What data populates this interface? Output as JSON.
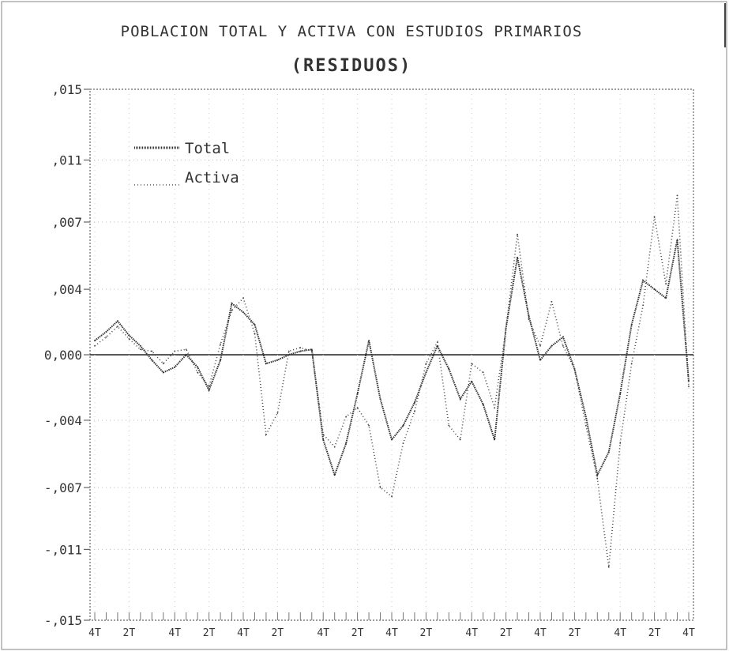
{
  "chart_data": {
    "type": "line",
    "title": "POBLACION TOTAL Y ACTIVA CON ESTUDIOS PRIMARIOS",
    "subtitle": "(RESIDUOS)",
    "xlabel": "",
    "ylabel": "",
    "ylim": [
      -0.015,
      0.015
    ],
    "y_ticks": [
      ",015",
      ",011",
      ",007",
      ",004",
      "0,000",
      "-,004",
      "-,007",
      "-,011",
      "-,015"
    ],
    "y_tick_values": [
      0.015,
      0.011,
      0.0075,
      0.0037,
      0.0,
      -0.0037,
      -0.0075,
      -0.011,
      -0.015
    ],
    "x_ticks": [
      "4T",
      "2T",
      "4T",
      "2T",
      "4T",
      "2T",
      "4T",
      "2T",
      "4T",
      "2T",
      "4T",
      "2T",
      "4T",
      "2T",
      "4T",
      "2T",
      "4T"
    ],
    "x_count": 53,
    "legend_position": "top-left",
    "series": [
      {
        "name": "Total",
        "style": "solid",
        "color": "#333333",
        "values": [
          0.0008,
          0.0013,
          0.0019,
          0.0011,
          0.0005,
          -0.0003,
          -0.001,
          -0.0007,
          0.0,
          -0.0007,
          -0.002,
          -0.0003,
          0.0029,
          0.0024,
          0.0017,
          -0.0005,
          -0.0003,
          0.0,
          0.0002,
          0.0003,
          -0.0048,
          -0.0068,
          -0.005,
          -0.0022,
          0.0008,
          -0.0025,
          -0.0048,
          -0.004,
          -0.0027,
          -0.001,
          0.0005,
          -0.0008,
          -0.0025,
          -0.0015,
          -0.0028,
          -0.0048,
          0.0015,
          0.0055,
          0.0022,
          -0.0003,
          0.0005,
          0.001,
          -0.0008,
          -0.0035,
          -0.0068,
          -0.0055,
          -0.0022,
          0.0017,
          0.0042,
          0.0037,
          0.0032,
          0.0065,
          -0.0015
        ]
      },
      {
        "name": "Activa",
        "style": "dotted",
        "color": "#444444",
        "values": [
          0.0005,
          0.001,
          0.0016,
          0.0009,
          0.0003,
          0.0002,
          -0.0005,
          0.0002,
          0.0003,
          -0.001,
          -0.0018,
          0.0006,
          0.0025,
          0.0032,
          0.0012,
          -0.0045,
          -0.0033,
          0.0002,
          0.0004,
          0.0002,
          -0.0045,
          -0.0052,
          -0.0035,
          -0.003,
          -0.004,
          -0.0075,
          -0.008,
          -0.005,
          -0.0032,
          -0.0005,
          0.0007,
          -0.004,
          -0.0048,
          -0.0005,
          -0.001,
          -0.003,
          0.0015,
          0.0068,
          0.002,
          0.0005,
          0.003,
          0.0005,
          -0.0008,
          -0.004,
          -0.007,
          -0.012,
          -0.005,
          -0.0005,
          0.0028,
          0.0078,
          0.004,
          0.009,
          -0.0018
        ]
      }
    ]
  }
}
